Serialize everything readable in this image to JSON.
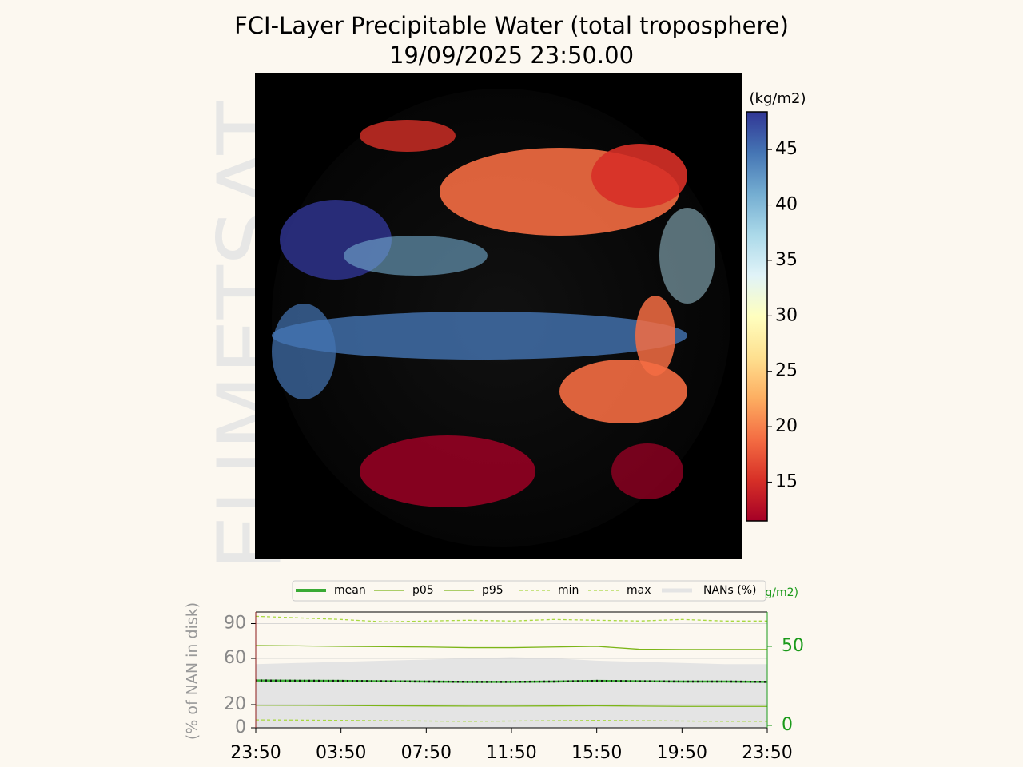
{
  "chart_data": [
    {
      "type": "image",
      "title": "FCI-Layer Precipitable Water (total troposphere)",
      "subtitle": "19/09/2025 23:50.00",
      "watermark": "EUMETSAT",
      "colorbar_label": "(kg/m2)",
      "clim": [
        11.5,
        48.4
      ],
      "cticks": [
        15,
        20,
        25,
        30,
        35,
        40,
        45
      ],
      "colormap": [
        "#a50026",
        "#d73027",
        "#f46d43",
        "#fdae61",
        "#fee090",
        "#ffffbf",
        "#e0f3f8",
        "#abd9e9",
        "#74add1",
        "#4575b4",
        "#313695"
      ]
    },
    {
      "type": "line",
      "ylabel": "(% of NAN in disk)",
      "y2label": "(kg/m2)",
      "x": [
        0,
        2,
        4,
        6,
        8,
        10,
        12,
        14,
        16,
        18,
        20,
        22,
        24
      ],
      "xlim": [
        0,
        24
      ],
      "xticks": [
        {
          "value": 0,
          "label": "23:50"
        },
        {
          "value": 4,
          "label": "03:50"
        },
        {
          "value": 8,
          "label": "07:50"
        },
        {
          "value": 12,
          "label": "11:50"
        },
        {
          "value": 16,
          "label": "15:50"
        },
        {
          "value": 20,
          "label": "19:50"
        },
        {
          "value": 24,
          "label": "23:50"
        }
      ],
      "ylim": [
        0,
        100
      ],
      "yticks": [
        0,
        20,
        60,
        90
      ],
      "grid": true,
      "y2lim": [
        -1.5,
        71.7
      ],
      "y2ticks": [
        0,
        50
      ],
      "series": [
        {
          "name": "mean",
          "color": "#3aaa35",
          "axis": "y2",
          "values": [
            28.5,
            28.3,
            28.2,
            28.0,
            27.8,
            27.6,
            27.6,
            27.8,
            28.2,
            28.0,
            27.8,
            27.8,
            27.6
          ]
        },
        {
          "name": "p05",
          "color": "#7cb518",
          "axis": "y2",
          "values": [
            12.8,
            12.7,
            12.6,
            12.4,
            12.3,
            12.2,
            12.2,
            12.3,
            12.4,
            12.2,
            12.0,
            12.0,
            12.0
          ]
        },
        {
          "name": "p95",
          "color": "#7cb518",
          "axis": "y2",
          "values": [
            50.5,
            50.3,
            50.0,
            49.8,
            49.6,
            49.2,
            49.2,
            49.6,
            50.0,
            48.2,
            48.0,
            48.0,
            48.0
          ]
        },
        {
          "name": "min",
          "color": "#a8d840",
          "axis": "y2",
          "dashed": true,
          "values": [
            3.5,
            3.4,
            3.2,
            3.0,
            2.8,
            2.6,
            2.8,
            3.0,
            3.2,
            3.0,
            2.8,
            2.6,
            2.6
          ]
        },
        {
          "name": "max",
          "color": "#a8d840",
          "axis": "y2",
          "dashed": true,
          "values": [
            69,
            68,
            67,
            65.5,
            66,
            66.5,
            66,
            67,
            66.5,
            66,
            67,
            66,
            66
          ]
        },
        {
          "name": "NANs (%)",
          "color": "#e4e4e4",
          "axis": "y",
          "area": true,
          "values": [
            55,
            56,
            57,
            58,
            59,
            60,
            61,
            60,
            58,
            57,
            56,
            55,
            55
          ]
        }
      ]
    }
  ]
}
